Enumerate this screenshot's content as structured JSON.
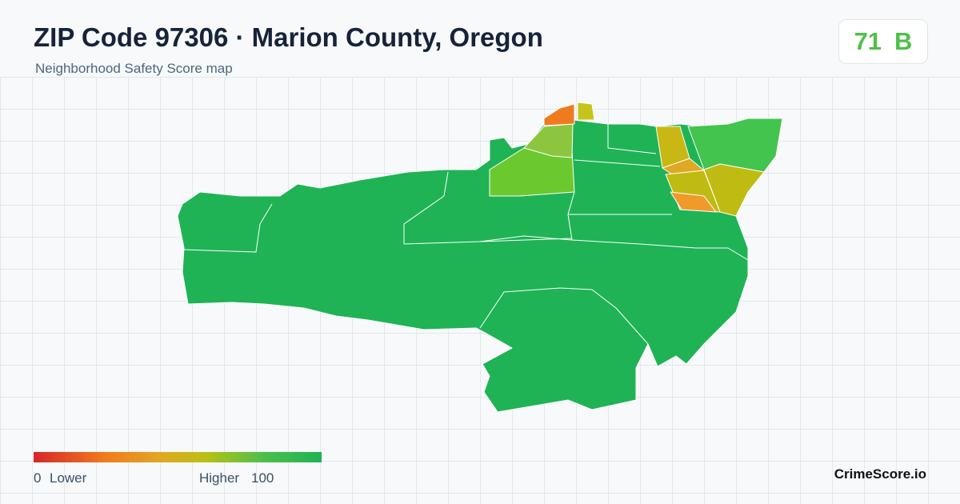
{
  "header": {
    "title": "ZIP Code 97306 · Marion County, Oregon",
    "subtitle": "Neighborhood Safety Score map"
  },
  "score": {
    "value": 71,
    "grade": "B"
  },
  "legend": {
    "min": 0,
    "min_label": "Lower",
    "max_label": "Higher",
    "max": 100
  },
  "brand": "CrimeScore.io"
}
